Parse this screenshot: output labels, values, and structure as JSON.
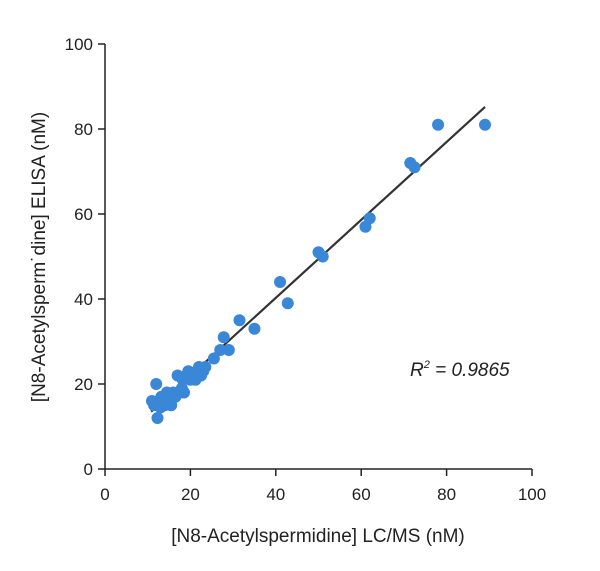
{
  "chart_data": {
    "type": "scatter",
    "title": "",
    "xlabel": "[N8-Acetylspermidine] LC/MS (nM)",
    "ylabel": "[N8-Acetylsperm˙dine] ELISA (nM)",
    "xlim": [
      0,
      100
    ],
    "ylim": [
      0,
      100
    ],
    "xticks": [
      "0",
      "20",
      "40",
      "60",
      "80",
      "100"
    ],
    "yticks": [
      "0",
      "20",
      "40",
      "60",
      "80",
      "100"
    ],
    "grid": false,
    "point_color": "#3a87d8",
    "line_color": "#333333",
    "annotation": {
      "r2_label": "R",
      "r2_sup": "2",
      "r2_value": " = 0.9865"
    },
    "fit_line": {
      "x": [
        10.8,
        89
      ],
      "y": [
        13.5,
        85.2
      ]
    },
    "series": [
      {
        "points": [
          [
            11,
            16
          ],
          [
            11.5,
            15
          ],
          [
            12,
            20
          ],
          [
            12.3,
            12
          ],
          [
            12.5,
            16
          ],
          [
            13,
            14.5
          ],
          [
            13.2,
            17
          ],
          [
            13.5,
            16
          ],
          [
            14,
            15
          ],
          [
            14.2,
            17
          ],
          [
            14.5,
            18
          ],
          [
            15,
            16
          ],
          [
            15.5,
            15
          ],
          [
            15.8,
            17.5
          ],
          [
            16,
            18
          ],
          [
            16.5,
            17
          ],
          [
            17,
            22
          ],
          [
            17.5,
            18
          ],
          [
            18,
            19
          ],
          [
            18.2,
            21
          ],
          [
            18.5,
            18
          ],
          [
            19,
            22
          ],
          [
            19.5,
            23
          ],
          [
            20,
            21
          ],
          [
            20.5,
            22
          ],
          [
            21,
            22
          ],
          [
            21.2,
            21
          ],
          [
            21.5,
            23
          ],
          [
            22,
            24
          ],
          [
            22.5,
            22
          ],
          [
            23,
            23
          ],
          [
            23.5,
            24
          ],
          [
            25.5,
            26
          ],
          [
            27,
            28
          ],
          [
            27.8,
            31
          ],
          [
            29,
            28
          ],
          [
            31.5,
            35
          ],
          [
            35,
            33
          ],
          [
            41,
            44
          ],
          [
            42.8,
            39
          ],
          [
            50,
            51
          ],
          [
            51,
            50
          ],
          [
            61,
            57
          ],
          [
            62,
            59
          ],
          [
            71.5,
            72
          ],
          [
            72.5,
            71
          ],
          [
            78,
            81
          ],
          [
            89,
            81
          ]
        ]
      }
    ]
  }
}
